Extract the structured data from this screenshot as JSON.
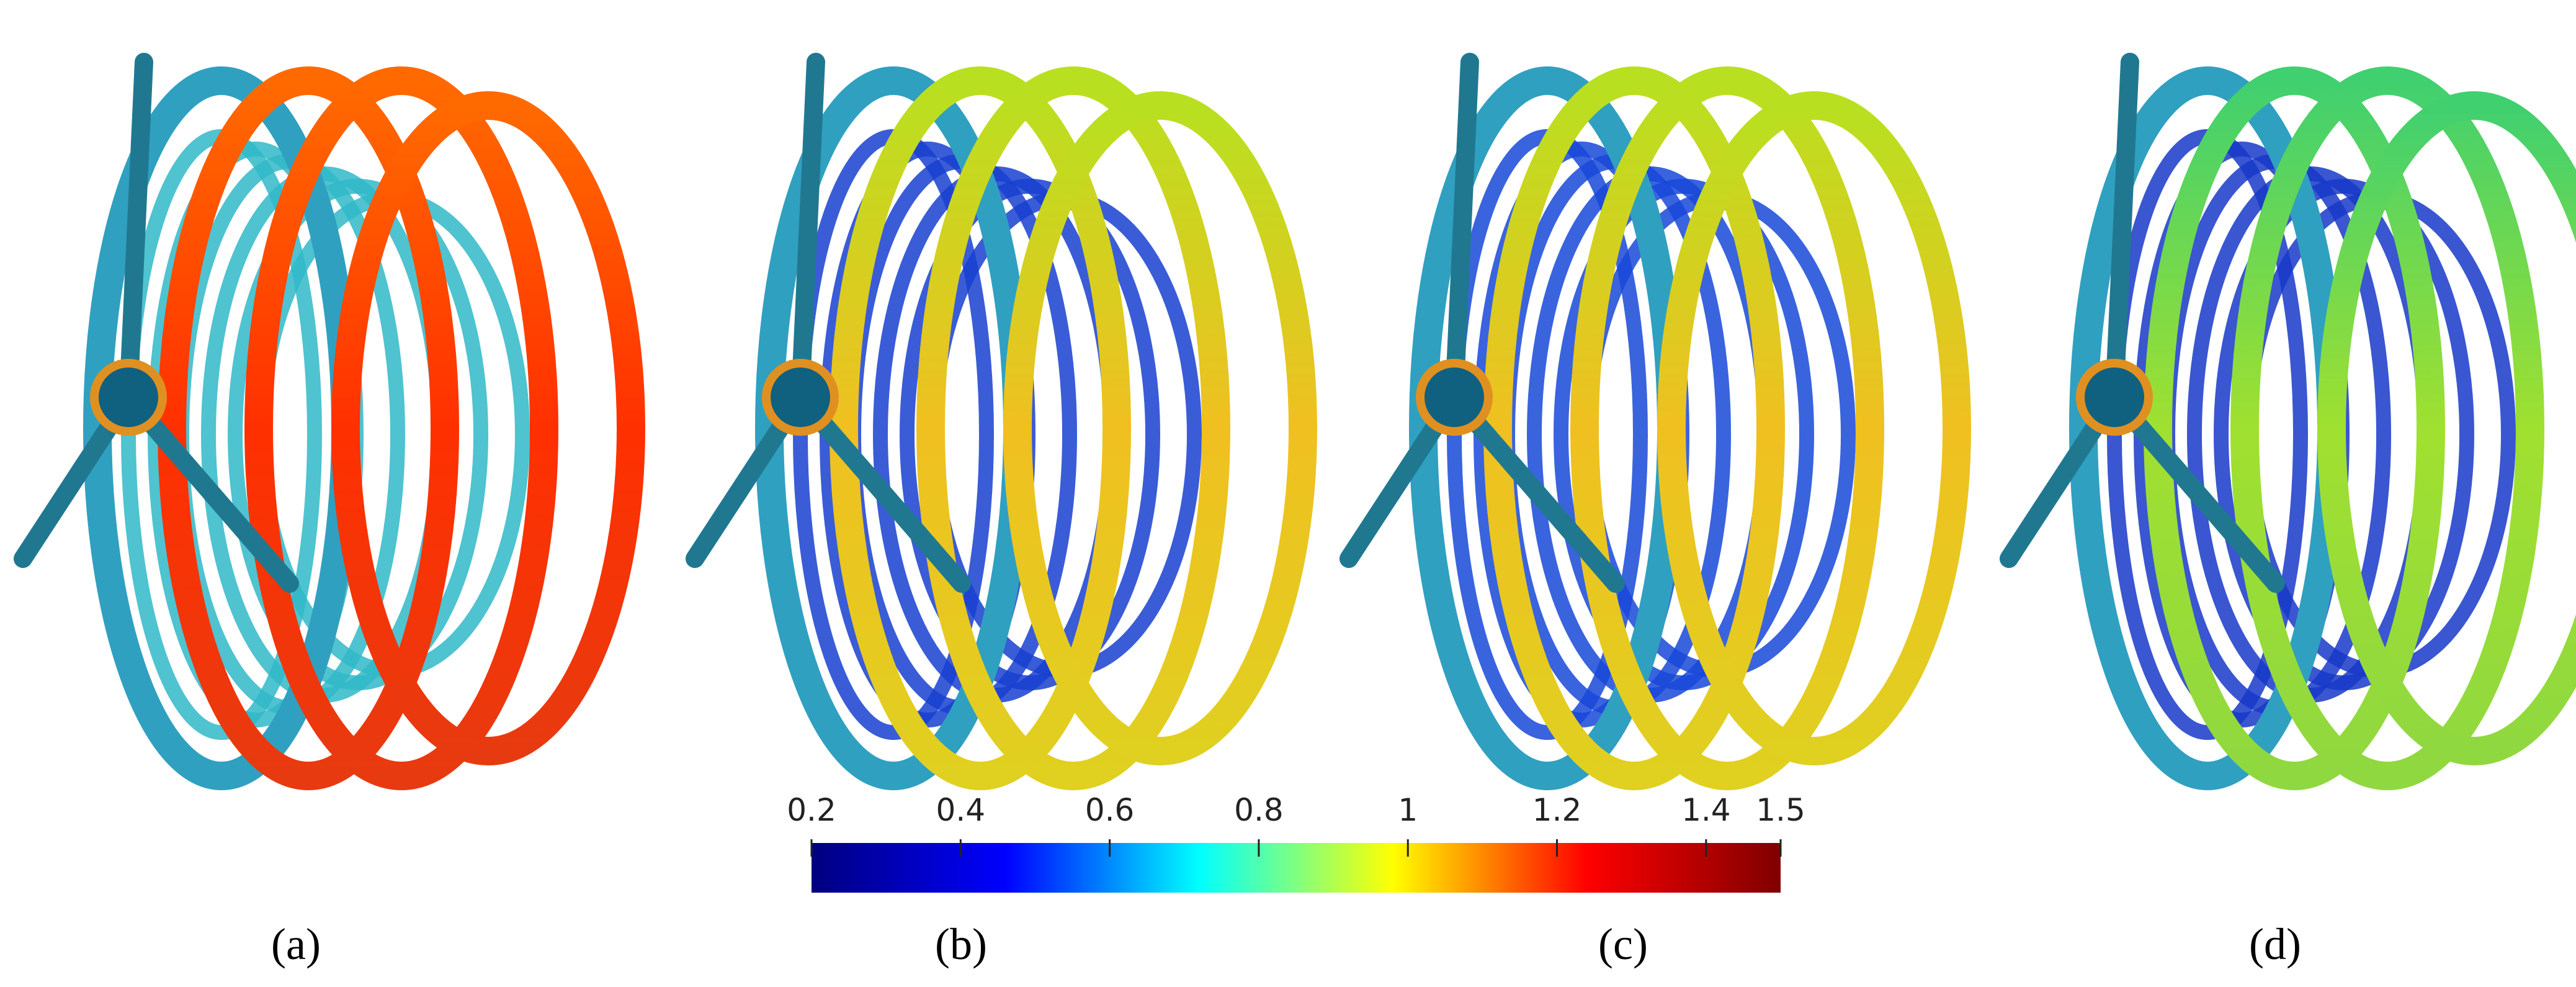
{
  "panels": [
    {
      "label": "(a)"
    },
    {
      "label": "(b)"
    },
    {
      "label": "(c)"
    },
    {
      "label": "(d)"
    }
  ],
  "colorbar": {
    "range": [
      0.2,
      1.5
    ],
    "ticks": [
      0.2,
      0.4,
      0.6,
      0.8,
      1,
      1.2,
      1.4,
      1.5
    ],
    "colors": [
      "#00007f",
      "#0000ff",
      "#00ffff",
      "#ffff00",
      "#ff0000",
      "#7f0000"
    ]
  }
}
